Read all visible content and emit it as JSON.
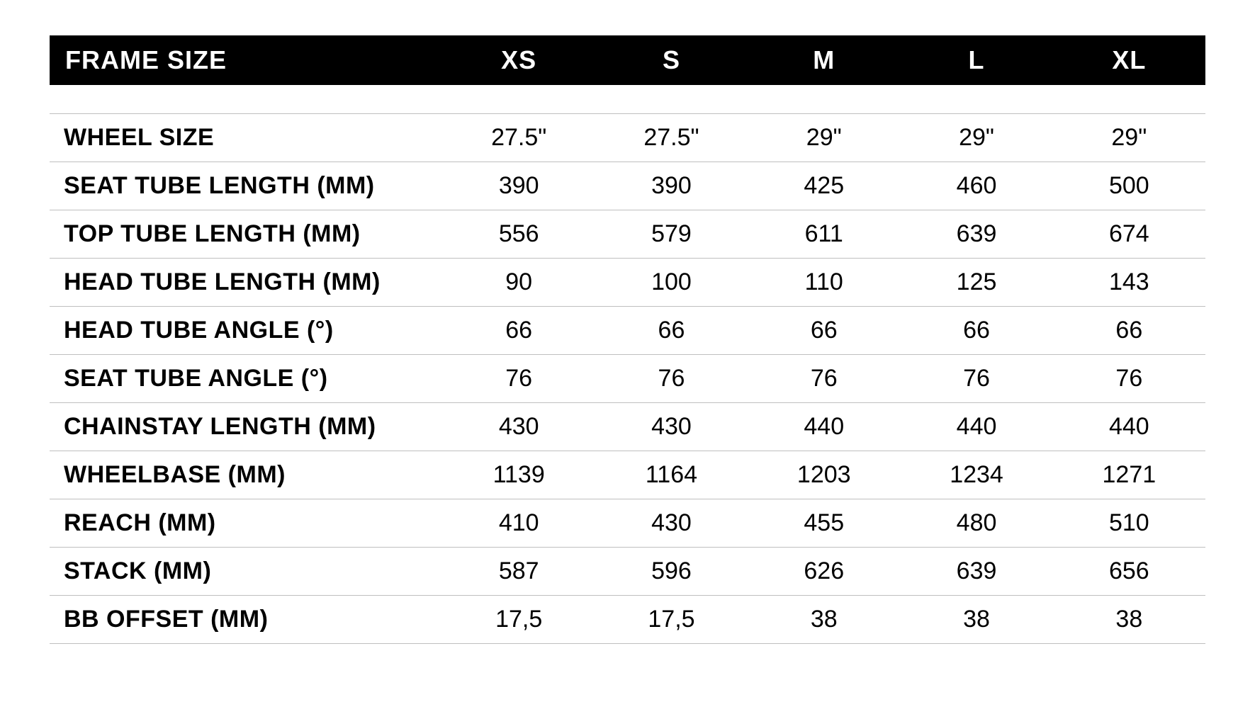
{
  "table": {
    "type": "table",
    "header_bg": "#000000",
    "header_fg": "#ffffff",
    "row_border_color": "#bfbfbf",
    "body_bg": "#ffffff",
    "label_font_weight": 800,
    "value_font_weight": 400,
    "header_fontsize": 36,
    "body_fontsize": 34,
    "header_label": "FRAME SIZE",
    "columns": [
      "XS",
      "S",
      "M",
      "L",
      "XL"
    ],
    "column_widths_pct": [
      34,
      13.2,
      13.2,
      13.2,
      13.2,
      13.2
    ],
    "rows": [
      {
        "label": "WHEEL SIZE",
        "values": [
          "27.5\"",
          "27.5\"",
          "29\"",
          "29\"",
          "29\""
        ]
      },
      {
        "label": "SEAT TUBE LENGTH (MM)",
        "values": [
          "390",
          "390",
          "425",
          "460",
          "500"
        ]
      },
      {
        "label": "TOP TUBE LENGTH (MM)",
        "values": [
          "556",
          "579",
          "611",
          "639",
          "674"
        ]
      },
      {
        "label": "HEAD TUBE LENGTH (MM)",
        "values": [
          "90",
          "100",
          "110",
          "125",
          "143"
        ]
      },
      {
        "label": "HEAD TUBE ANGLE (°)",
        "values": [
          "66",
          "66",
          "66",
          "66",
          "66"
        ]
      },
      {
        "label": "SEAT TUBE ANGLE (°)",
        "values": [
          "76",
          "76",
          "76",
          "76",
          "76"
        ]
      },
      {
        "label": "CHAINSTAY LENGTH (MM)",
        "values": [
          "430",
          "430",
          "440",
          "440",
          "440"
        ]
      },
      {
        "label": "WHEELBASE (MM)",
        "values": [
          "1139",
          "1164",
          "1203",
          "1234",
          "1271"
        ]
      },
      {
        "label": "REACH (MM)",
        "values": [
          "410",
          "430",
          "455",
          "480",
          "510"
        ]
      },
      {
        "label": "STACK (MM)",
        "values": [
          "587",
          "596",
          "626",
          "639",
          "656"
        ]
      },
      {
        "label": "BB OFFSET (MM)",
        "values": [
          "17,5",
          "17,5",
          "38",
          "38",
          "38"
        ]
      }
    ]
  }
}
